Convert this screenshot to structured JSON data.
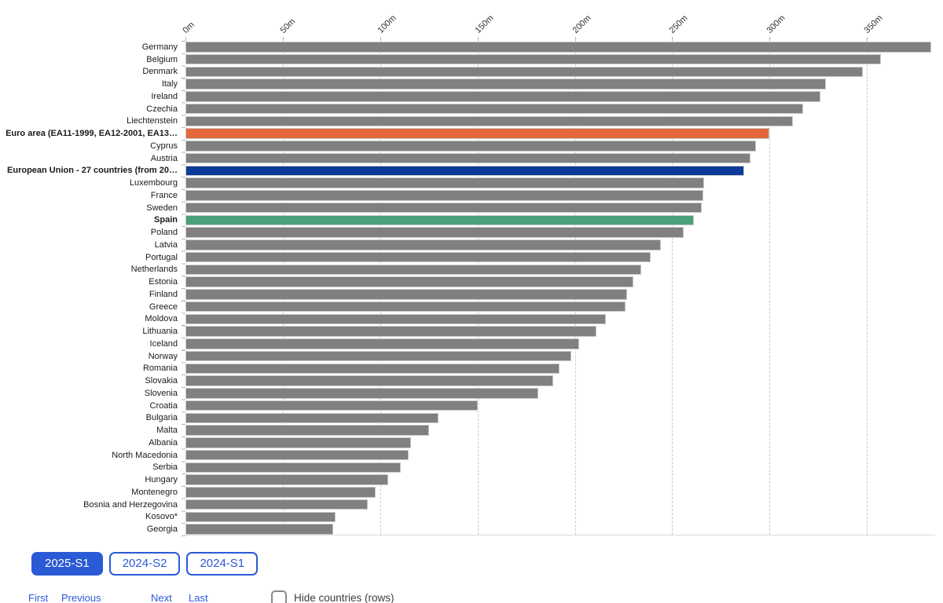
{
  "accent_color": "#2B5AD7",
  "chart_data": {
    "type": "bar",
    "orientation": "horizontal",
    "title": "",
    "xlabel": "",
    "ylabel": "",
    "unit_suffix": "m",
    "xlim": [
      0,
      385
    ],
    "grid": "dashed-vertical",
    "x_ticks": [
      {
        "label": "0m",
        "value": 0
      },
      {
        "label": "50m",
        "value": 50
      },
      {
        "label": "100m",
        "value": 100
      },
      {
        "label": "150m",
        "value": 150
      },
      {
        "label": "200m",
        "value": 200
      },
      {
        "label": "250m",
        "value": 250
      },
      {
        "label": "300m",
        "value": 300
      },
      {
        "label": "350m",
        "value": 350
      }
    ],
    "bar_colors": {
      "default": "#808080",
      "euro_area": "#E2673A",
      "eu27": "#0E3A9B",
      "spain": "#4AA078"
    },
    "bars": [
      {
        "label": "Germany",
        "value": 383,
        "color_key": "default",
        "bold": false
      },
      {
        "label": "Belgium",
        "value": 357,
        "color_key": "default",
        "bold": false
      },
      {
        "label": "Denmark",
        "value": 348,
        "color_key": "default",
        "bold": false
      },
      {
        "label": "Italy",
        "value": 329,
        "color_key": "default",
        "bold": false
      },
      {
        "label": "Ireland",
        "value": 326,
        "color_key": "default",
        "bold": false
      },
      {
        "label": "Czechia",
        "value": 317,
        "color_key": "default",
        "bold": false
      },
      {
        "label": "Liechtenstein",
        "value": 312,
        "color_key": "default",
        "bold": false
      },
      {
        "label": "Euro area (EA11-1999, EA12-2001, EA13…",
        "value": 300,
        "color_key": "euro_area",
        "bold": true
      },
      {
        "label": "Cyprus",
        "value": 293,
        "color_key": "default",
        "bold": false
      },
      {
        "label": "Austria",
        "value": 290,
        "color_key": "default",
        "bold": false
      },
      {
        "label": "European Union - 27 countries (from 20…",
        "value": 287,
        "color_key": "eu27",
        "bold": true
      },
      {
        "label": "Luxembourg",
        "value": 266.5,
        "color_key": "default",
        "bold": false
      },
      {
        "label": "France",
        "value": 266,
        "color_key": "default",
        "bold": false
      },
      {
        "label": "Sweden",
        "value": 265,
        "color_key": "default",
        "bold": false
      },
      {
        "label": "Spain",
        "value": 261,
        "color_key": "spain",
        "bold": true
      },
      {
        "label": "Poland",
        "value": 256,
        "color_key": "default",
        "bold": false
      },
      {
        "label": "Latvia",
        "value": 244,
        "color_key": "default",
        "bold": false
      },
      {
        "label": "Portugal",
        "value": 239,
        "color_key": "default",
        "bold": false
      },
      {
        "label": "Netherlands",
        "value": 234,
        "color_key": "default",
        "bold": false
      },
      {
        "label": "Estonia",
        "value": 230,
        "color_key": "default",
        "bold": false
      },
      {
        "label": "Finland",
        "value": 227,
        "color_key": "default",
        "bold": false
      },
      {
        "label": "Greece",
        "value": 226,
        "color_key": "default",
        "bold": false
      },
      {
        "label": "Moldova",
        "value": 216,
        "color_key": "default",
        "bold": false
      },
      {
        "label": "Lithuania",
        "value": 211,
        "color_key": "default",
        "bold": false
      },
      {
        "label": "Iceland",
        "value": 202,
        "color_key": "default",
        "bold": false
      },
      {
        "label": "Norway",
        "value": 198,
        "color_key": "default",
        "bold": false
      },
      {
        "label": "Romania",
        "value": 192,
        "color_key": "default",
        "bold": false
      },
      {
        "label": "Slovakia",
        "value": 189,
        "color_key": "default",
        "bold": false
      },
      {
        "label": "Slovenia",
        "value": 181,
        "color_key": "default",
        "bold": false
      },
      {
        "label": "Croatia",
        "value": 150,
        "color_key": "default",
        "bold": false
      },
      {
        "label": "Bulgaria",
        "value": 130,
        "color_key": "default",
        "bold": false
      },
      {
        "label": "Malta",
        "value": 125,
        "color_key": "default",
        "bold": false
      },
      {
        "label": "Albania",
        "value": 116,
        "color_key": "default",
        "bold": false
      },
      {
        "label": "North Macedonia",
        "value": 114.5,
        "color_key": "default",
        "bold": false
      },
      {
        "label": "Serbia",
        "value": 110.5,
        "color_key": "default",
        "bold": false
      },
      {
        "label": "Hungary",
        "value": 104,
        "color_key": "default",
        "bold": false
      },
      {
        "label": "Montenegro",
        "value": 97.5,
        "color_key": "default",
        "bold": false
      },
      {
        "label": "Bosnia and Herzegovina",
        "value": 93.5,
        "color_key": "default",
        "bold": false
      },
      {
        "label": "Kosovo*",
        "value": 77,
        "color_key": "default",
        "bold": false
      },
      {
        "label": "Georgia",
        "value": 76,
        "color_key": "default",
        "bold": false
      }
    ]
  },
  "period_buttons": [
    {
      "label": "2025-S1",
      "selected": true
    },
    {
      "label": "2024-S2",
      "selected": false
    },
    {
      "label": "2024-S1",
      "selected": false
    }
  ],
  "footer": {
    "links": [
      {
        "label": "First",
        "x": 36
      },
      {
        "label": "Previous",
        "x": 78
      },
      {
        "label": "Next",
        "x": 192
      },
      {
        "label": "Last",
        "x": 240
      }
    ],
    "checkbox_label": "Hide countries (rows)",
    "checkbox_checked": false
  }
}
